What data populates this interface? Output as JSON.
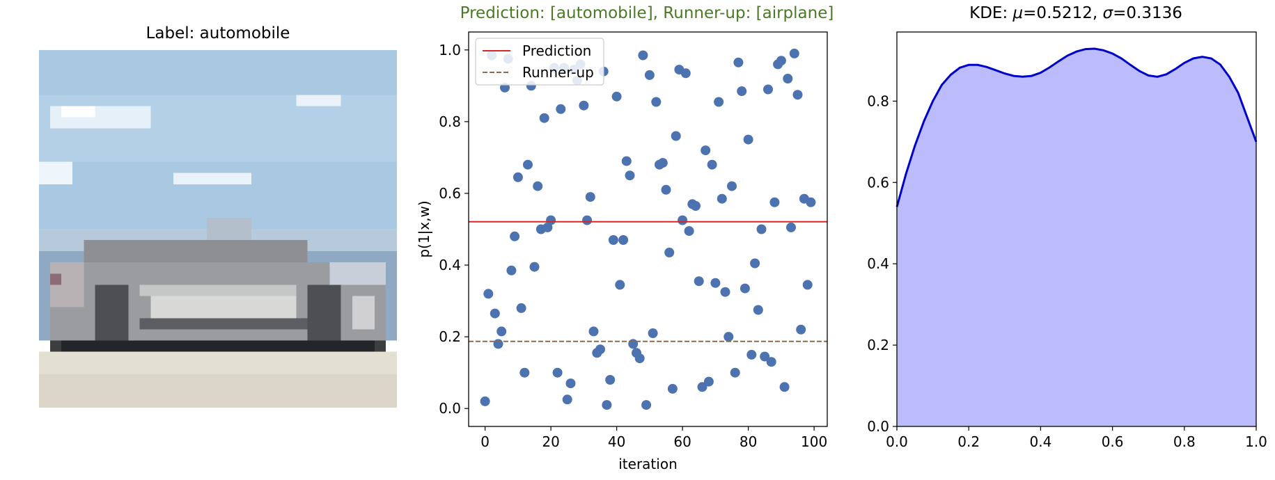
{
  "panels": {
    "image": {
      "title": "Label: automobile"
    },
    "scatter": {
      "title": "Prediction: [automobile], Runner-up: [airplane]",
      "title_color": "#4a7a24"
    },
    "kde": {
      "title_prefix": "KDE: ",
      "mu_symbol": "μ",
      "mu_text": "=0.5212, ",
      "sigma_symbol": "σ",
      "sigma_text": "=0.3136"
    }
  },
  "chart_data": [
    {
      "type": "scatter",
      "title": "Prediction: [automobile], Runner-up: [airplane]",
      "xlabel": "iteration",
      "ylabel": "p(1|x,w)",
      "xlim": [
        -5,
        104
      ],
      "ylim": [
        -0.05,
        1.05
      ],
      "xticks": [
        0,
        20,
        40,
        60,
        80,
        100
      ],
      "xtick_labels": [
        "0",
        "20",
        "40",
        "60",
        "80",
        "100"
      ],
      "yticks": [
        0.0,
        0.2,
        0.4,
        0.6,
        0.8,
        1.0
      ],
      "ytick_labels": [
        "0.0",
        "0.2",
        "0.4",
        "0.6",
        "0.8",
        "1.0"
      ],
      "point_color": "#4c72b0",
      "legend": {
        "position": "upper-left",
        "entries": [
          {
            "label": "Prediction",
            "color": "#d62728",
            "style": "solid"
          },
          {
            "label": "Runner-up",
            "color": "#8c6a4a",
            "style": "dashed"
          }
        ]
      },
      "hlines": [
        {
          "name": "Prediction",
          "y": 0.521,
          "color": "#d62728",
          "style": "solid"
        },
        {
          "name": "Runner-up",
          "y": 0.187,
          "color": "#8c6a4a",
          "style": "dashed"
        }
      ],
      "points": [
        [
          0,
          0.02
        ],
        [
          1,
          0.32
        ],
        [
          2,
          0.985
        ],
        [
          3,
          0.265
        ],
        [
          4,
          0.18
        ],
        [
          5,
          0.215
        ],
        [
          6,
          0.895
        ],
        [
          7,
          0.975
        ],
        [
          8,
          0.385
        ],
        [
          9,
          0.48
        ],
        [
          10,
          0.645
        ],
        [
          11,
          0.28
        ],
        [
          12,
          0.1
        ],
        [
          13,
          0.68
        ],
        [
          14,
          0.9
        ],
        [
          15,
          0.395
        ],
        [
          16,
          0.62
        ],
        [
          17,
          0.5
        ],
        [
          18,
          0.81
        ],
        [
          19,
          0.505
        ],
        [
          20,
          0.525
        ],
        [
          21,
          0.95
        ],
        [
          22,
          0.1
        ],
        [
          23,
          0.835
        ],
        [
          24,
          0.95
        ],
        [
          25,
          0.025
        ],
        [
          26,
          0.07
        ],
        [
          27,
          0.945
        ],
        [
          28,
          0.915
        ],
        [
          29,
          0.96
        ],
        [
          30,
          0.845
        ],
        [
          31,
          0.525
        ],
        [
          32,
          0.59
        ],
        [
          33,
          0.215
        ],
        [
          34,
          0.155
        ],
        [
          35,
          0.165
        ],
        [
          36,
          0.94
        ],
        [
          37,
          0.01
        ],
        [
          38,
          0.08
        ],
        [
          39,
          0.47
        ],
        [
          40,
          0.87
        ],
        [
          41,
          0.345
        ],
        [
          42,
          0.47
        ],
        [
          43,
          0.69
        ],
        [
          44,
          0.65
        ],
        [
          45,
          0.18
        ],
        [
          46,
          0.155
        ],
        [
          47,
          0.14
        ],
        [
          48,
          0.985
        ],
        [
          49,
          0.01
        ],
        [
          50,
          0.93
        ],
        [
          51,
          0.21
        ],
        [
          52,
          0.855
        ],
        [
          53,
          0.68
        ],
        [
          54,
          0.685
        ],
        [
          55,
          0.61
        ],
        [
          56,
          0.435
        ],
        [
          57,
          0.055
        ],
        [
          58,
          0.76
        ],
        [
          59,
          0.945
        ],
        [
          60,
          0.525
        ],
        [
          61,
          0.935
        ],
        [
          62,
          0.495
        ],
        [
          63,
          0.57
        ],
        [
          64,
          0.565
        ],
        [
          65,
          0.355
        ],
        [
          66,
          0.06
        ],
        [
          67,
          0.72
        ],
        [
          68,
          0.075
        ],
        [
          69,
          0.68
        ],
        [
          70,
          0.35
        ],
        [
          71,
          0.855
        ],
        [
          72,
          0.585
        ],
        [
          73,
          0.325
        ],
        [
          74,
          0.2
        ],
        [
          75,
          0.62
        ],
        [
          76,
          0.1
        ],
        [
          77,
          0.965
        ],
        [
          78,
          0.885
        ],
        [
          79,
          0.335
        ],
        [
          80,
          0.75
        ],
        [
          81,
          0.15
        ],
        [
          82,
          0.405
        ],
        [
          83,
          0.275
        ],
        [
          84,
          0.5
        ],
        [
          85,
          0.145
        ],
        [
          86,
          0.89
        ],
        [
          87,
          0.13
        ],
        [
          88,
          0.575
        ],
        [
          89,
          0.96
        ],
        [
          90,
          0.97
        ],
        [
          91,
          0.06
        ],
        [
          92,
          0.92
        ],
        [
          93,
          0.505
        ],
        [
          94,
          0.99
        ],
        [
          95,
          0.875
        ],
        [
          96,
          0.22
        ],
        [
          97,
          0.585
        ],
        [
          98,
          0.345
        ],
        [
          99,
          0.575
        ]
      ]
    },
    {
      "type": "area",
      "title": "KDE: μ=0.5212, σ=0.3136",
      "xlim": [
        0.0,
        1.0
      ],
      "ylim": [
        0.0,
        0.97
      ],
      "xticks": [
        0.0,
        0.2,
        0.4,
        0.6,
        0.8,
        1.0
      ],
      "xtick_labels": [
        "0.0",
        "0.2",
        "0.4",
        "0.6",
        "0.8",
        "1.0"
      ],
      "yticks": [
        0.0,
        0.2,
        0.4,
        0.6,
        0.8
      ],
      "ytick_labels": [
        "0.0",
        "0.2",
        "0.4",
        "0.6",
        "0.8"
      ],
      "line_color": "#0000cc",
      "fill_color": "#bcbcfc",
      "x": [
        0.0,
        0.025,
        0.05,
        0.075,
        0.1,
        0.125,
        0.15,
        0.175,
        0.2,
        0.225,
        0.25,
        0.275,
        0.3,
        0.325,
        0.35,
        0.375,
        0.4,
        0.425,
        0.45,
        0.475,
        0.5,
        0.525,
        0.55,
        0.575,
        0.6,
        0.625,
        0.65,
        0.675,
        0.7,
        0.725,
        0.75,
        0.775,
        0.8,
        0.825,
        0.85,
        0.875,
        0.9,
        0.925,
        0.95,
        0.975,
        1.0
      ],
      "y": [
        0.54,
        0.62,
        0.69,
        0.75,
        0.8,
        0.84,
        0.865,
        0.882,
        0.889,
        0.889,
        0.884,
        0.876,
        0.868,
        0.862,
        0.86,
        0.862,
        0.87,
        0.883,
        0.898,
        0.912,
        0.922,
        0.928,
        0.929,
        0.925,
        0.917,
        0.905,
        0.889,
        0.874,
        0.863,
        0.86,
        0.866,
        0.879,
        0.894,
        0.905,
        0.909,
        0.905,
        0.89,
        0.86,
        0.82,
        0.76,
        0.7
      ]
    }
  ]
}
